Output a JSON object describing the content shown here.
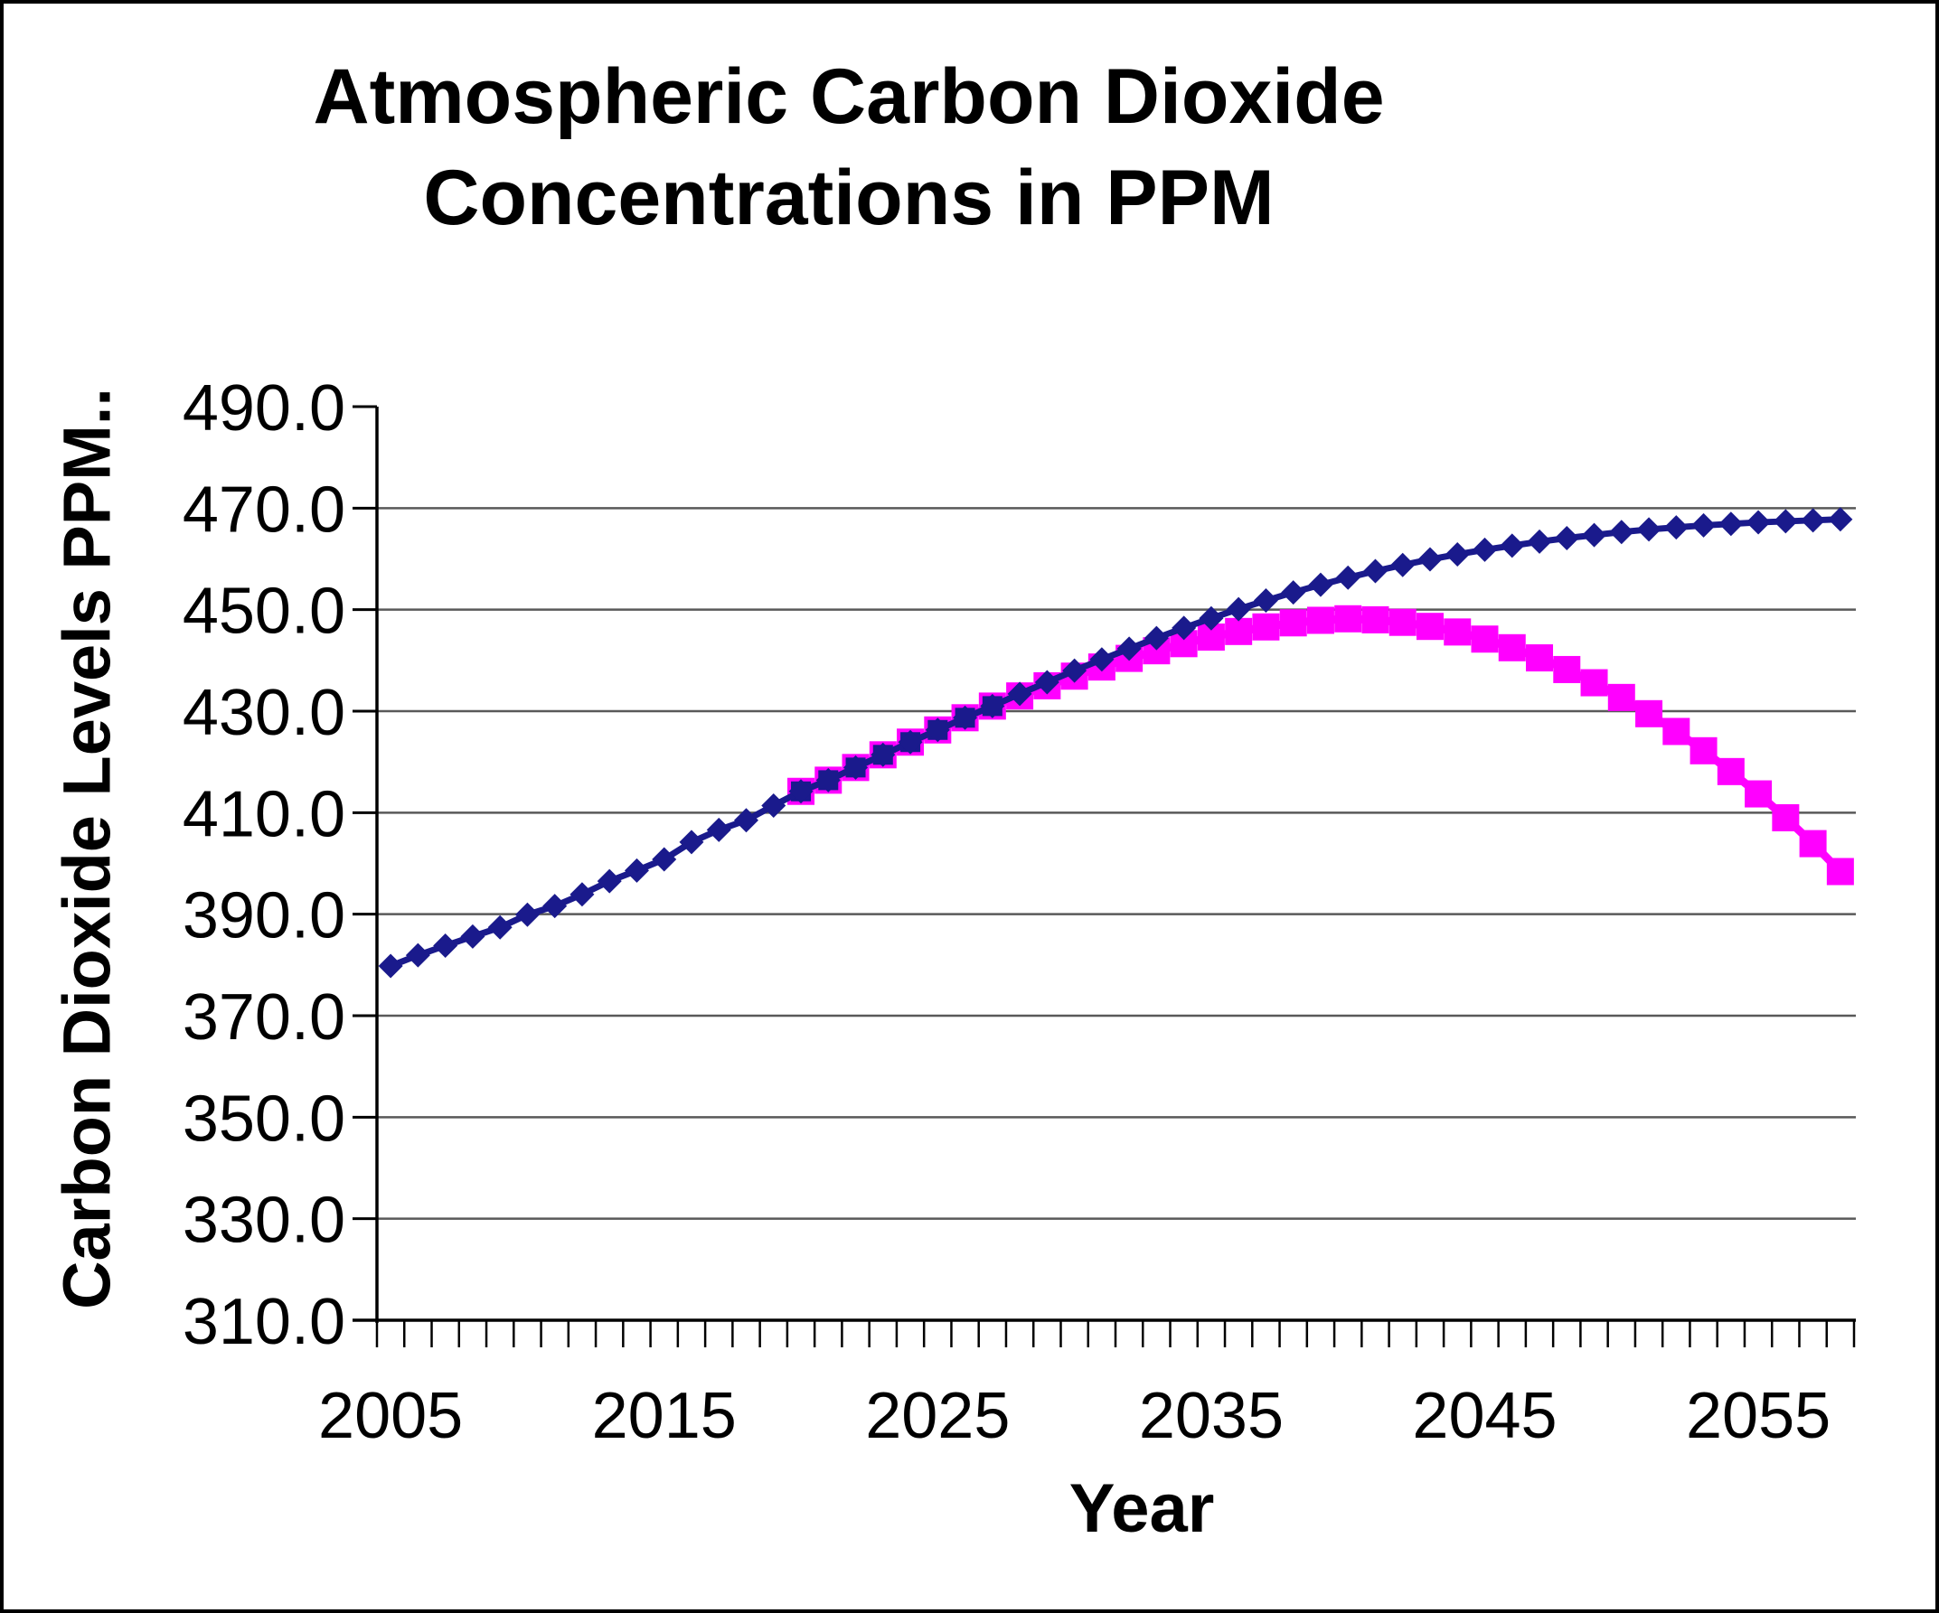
{
  "chart_data": {
    "type": "line",
    "title": "Atmospheric Carbon Dioxide Concentrations in PPM",
    "title_lines": [
      "Atmospheric Carbon Dioxide",
      "Concentrations in PPM"
    ],
    "xlabel": "Year",
    "ylabel": "Carbon Dioxide Levels PPM..",
    "x_start_year": 2005,
    "x_end_year": 2058,
    "xtick_label_years": [
      "2005",
      "2015",
      "2025",
      "2035",
      "2045",
      "2055"
    ],
    "ytick_labels": [
      "310.0",
      "330.0",
      "350.0",
      "370.0",
      "390.0",
      "410.0",
      "430.0",
      "450.0",
      "470.0",
      "490.0"
    ],
    "ylim": [
      310,
      490
    ],
    "ytick_step": 20,
    "gridline_values": [
      330,
      350,
      370,
      390,
      410,
      430,
      450,
      470
    ],
    "grid": "horizontal",
    "legend_position": "none",
    "series": [
      {
        "name": "co2-projection-diamond-series",
        "marker": "diamond",
        "color": "#1A1A8C",
        "start_year": 2005,
        "values": [
          379.8,
          381.9,
          383.8,
          385.6,
          387.4,
          389.9,
          391.6,
          393.9,
          396.5,
          398.6,
          400.8,
          404.2,
          406.6,
          408.5,
          411.4,
          414.2,
          416.4,
          418.9,
          421.4,
          423.9,
          426.3,
          428.7,
          431.0,
          433.4,
          435.7,
          438.0,
          440.2,
          442.3,
          444.4,
          446.4,
          448.3,
          450.1,
          451.8,
          453.4,
          454.9,
          456.3,
          457.6,
          458.8,
          459.9,
          460.9,
          461.8,
          462.6,
          463.4,
          464.1,
          464.7,
          465.3,
          465.8,
          466.2,
          466.6,
          466.9,
          467.2,
          467.4,
          467.6,
          467.8
        ]
      },
      {
        "name": "co2-reduction-scenario-square-series",
        "marker": "square",
        "color": "#FF00FF",
        "start_year": 2020,
        "overlap_navy_fill_through_year": 2027,
        "values": [
          414.2,
          416.4,
          418.9,
          421.4,
          423.9,
          426.3,
          428.7,
          431.0,
          433.0,
          435.0,
          436.9,
          438.7,
          440.4,
          441.9,
          443.3,
          444.6,
          445.7,
          446.6,
          447.4,
          447.9,
          448.2,
          448.0,
          447.5,
          446.7,
          445.6,
          444.2,
          442.5,
          440.5,
          438.2,
          435.6,
          432.7,
          429.5,
          426.0,
          422.2,
          418.1,
          413.7,
          409.0,
          403.9,
          398.4
        ]
      }
    ],
    "colors": {
      "navy_series": "#1A1A8C",
      "magenta_series": "#FF00FF",
      "gridline": "#595959",
      "axis": "#000000",
      "background": "#FFFFFF",
      "frame_border": "#000000",
      "text": "#000000"
    }
  }
}
